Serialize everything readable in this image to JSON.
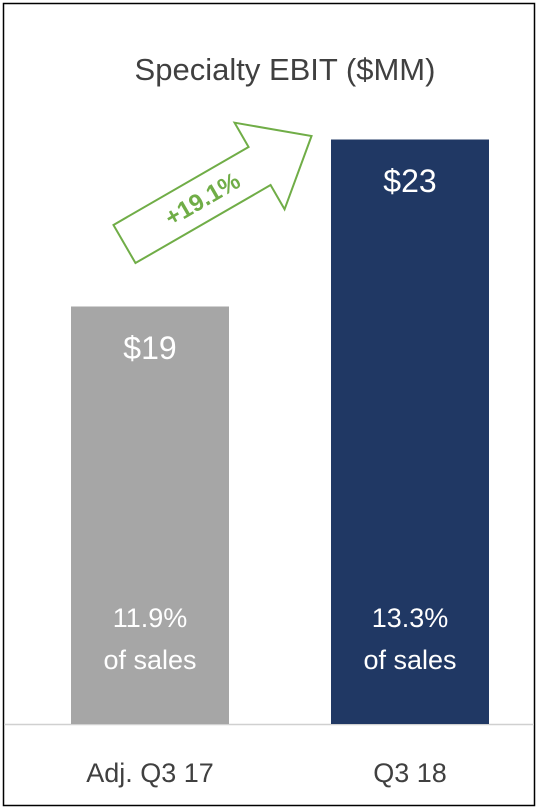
{
  "chart_data": {
    "type": "bar",
    "title": "Specialty EBIT ($MM)",
    "categories": [
      "Adj. Q3 17",
      "Q3 18"
    ],
    "values": [
      19,
      23
    ],
    "value_labels": [
      "$19",
      "$23"
    ],
    "colors": [
      "#a6a6a6",
      "#203864"
    ],
    "bar_notes": [
      [
        "11.9%",
        "of sales"
      ],
      [
        "13.3%",
        "of sales"
      ]
    ],
    "growth_label": "+19.1%",
    "ylim": [
      9,
      24
    ]
  }
}
